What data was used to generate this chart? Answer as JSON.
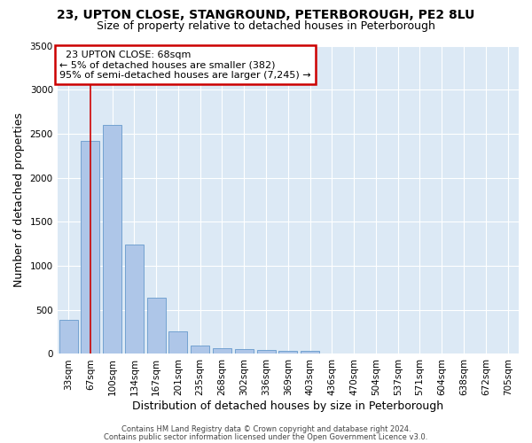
{
  "title1": "23, UPTON CLOSE, STANGROUND, PETERBOROUGH, PE2 8LU",
  "title2": "Size of property relative to detached houses in Peterborough",
  "xlabel": "Distribution of detached houses by size in Peterborough",
  "ylabel": "Number of detached properties",
  "categories": [
    "33sqm",
    "67sqm",
    "100sqm",
    "134sqm",
    "167sqm",
    "201sqm",
    "235sqm",
    "268sqm",
    "302sqm",
    "336sqm",
    "369sqm",
    "403sqm",
    "436sqm",
    "470sqm",
    "504sqm",
    "537sqm",
    "571sqm",
    "604sqm",
    "638sqm",
    "672sqm",
    "705sqm"
  ],
  "values": [
    390,
    2420,
    2600,
    1240,
    640,
    260,
    100,
    65,
    55,
    45,
    30,
    30,
    0,
    0,
    0,
    0,
    0,
    0,
    0,
    0,
    0
  ],
  "bar_color": "#aec6e8",
  "bar_edge_color": "#6699cc",
  "annotation_text_line1": "23 UPTON CLOSE: 68sqm",
  "annotation_text_line2": "← 5% of detached houses are smaller (382)",
  "annotation_text_line3": "95% of semi-detached houses are larger (7,245) →",
  "annotation_box_color": "#ffffff",
  "annotation_box_edge_color": "#cc0000",
  "vline_color": "#cc0000",
  "vline_x": 1.0,
  "ylim": [
    0,
    3500
  ],
  "yticks": [
    0,
    500,
    1000,
    1500,
    2000,
    2500,
    3000,
    3500
  ],
  "footnote1": "Contains HM Land Registry data © Crown copyright and database right 2024.",
  "footnote2": "Contains public sector information licensed under the Open Government Licence v3.0.",
  "fig_bg_color": "#ffffff",
  "plot_bg_color": "#dce9f5",
  "grid_color": "#ffffff",
  "title_fontsize": 10,
  "subtitle_fontsize": 9,
  "ylabel_fontsize": 9,
  "xlabel_fontsize": 9,
  "tick_fontsize": 7.5,
  "footnote_fontsize": 6,
  "annot_fontsize": 8
}
